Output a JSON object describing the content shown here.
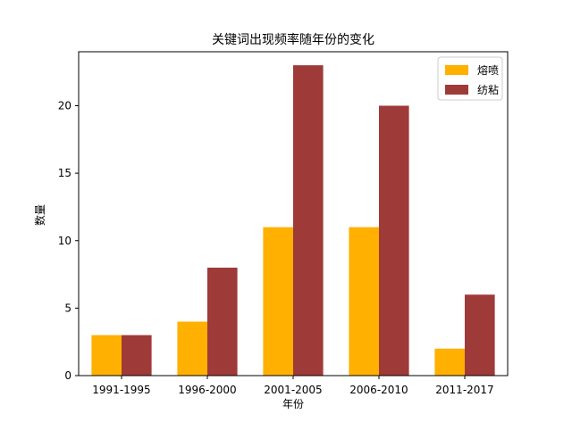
{
  "chart_data": {
    "type": "bar",
    "title": "关键词出现频率随年份的变化",
    "xlabel": "年份",
    "ylabel": "数量",
    "categories": [
      "1991-1995",
      "1996-2000",
      "2001-2005",
      "2006-2010",
      "2011-2017"
    ],
    "series": [
      {
        "name": "熔喷",
        "color": "#FFB000",
        "values": [
          3,
          4,
          11,
          11,
          2
        ]
      },
      {
        "name": "纺粘",
        "color": "#9E3A38",
        "values": [
          3,
          8,
          23,
          20,
          6
        ]
      }
    ],
    "ylim": [
      0,
      24
    ],
    "yticks": [
      0,
      5,
      10,
      15,
      20
    ],
    "grid": false,
    "legend_position": "top-right"
  }
}
